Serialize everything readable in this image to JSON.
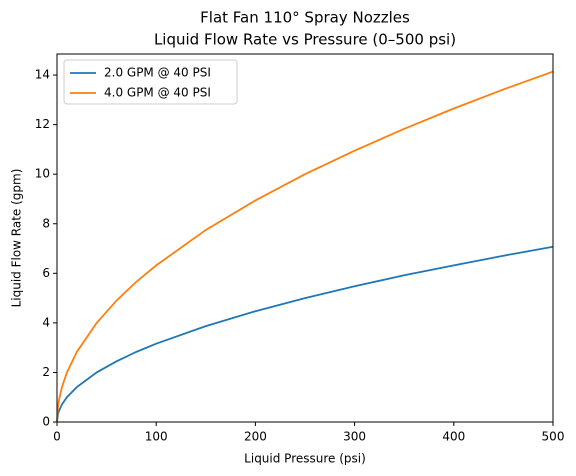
{
  "chart_data": {
    "type": "line",
    "title": "Flat Fan 110° Spray Nozzles",
    "subtitle": "Liquid Flow Rate vs Pressure (0–500 psi)",
    "x_label": "Liquid Pressure (psi)",
    "y_label": "Liquid Flow Rate (gpm)",
    "x": [
      0,
      1,
      2,
      5,
      10,
      20,
      40,
      60,
      80,
      100,
      150,
      200,
      250,
      300,
      350,
      400,
      450,
      500
    ],
    "series": [
      {
        "name": "2.0 GPM @ 40 PSI",
        "color": "#1f77b4",
        "values": [
          0,
          0.32,
          0.45,
          0.71,
          1.0,
          1.41,
          2.0,
          2.45,
          2.83,
          3.16,
          3.87,
          4.47,
          5.0,
          5.48,
          5.92,
          6.32,
          6.71,
          7.07
        ]
      },
      {
        "name": "4.0 GPM @ 40 PSI",
        "color": "#ff7f0e",
        "values": [
          0,
          0.63,
          0.89,
          1.41,
          2.0,
          2.83,
          4.0,
          4.9,
          5.66,
          6.32,
          7.75,
          8.94,
          10.0,
          10.95,
          11.83,
          12.65,
          13.42,
          14.14
        ]
      }
    ],
    "xlim": [
      0,
      500
    ],
    "xticks": [
      0,
      100,
      200,
      300,
      400,
      500
    ],
    "ylim": [
      0,
      14.85
    ],
    "yticks": [
      0,
      2,
      4,
      6,
      8,
      10,
      12,
      14
    ],
    "grid": false,
    "legend": "upper left"
  }
}
